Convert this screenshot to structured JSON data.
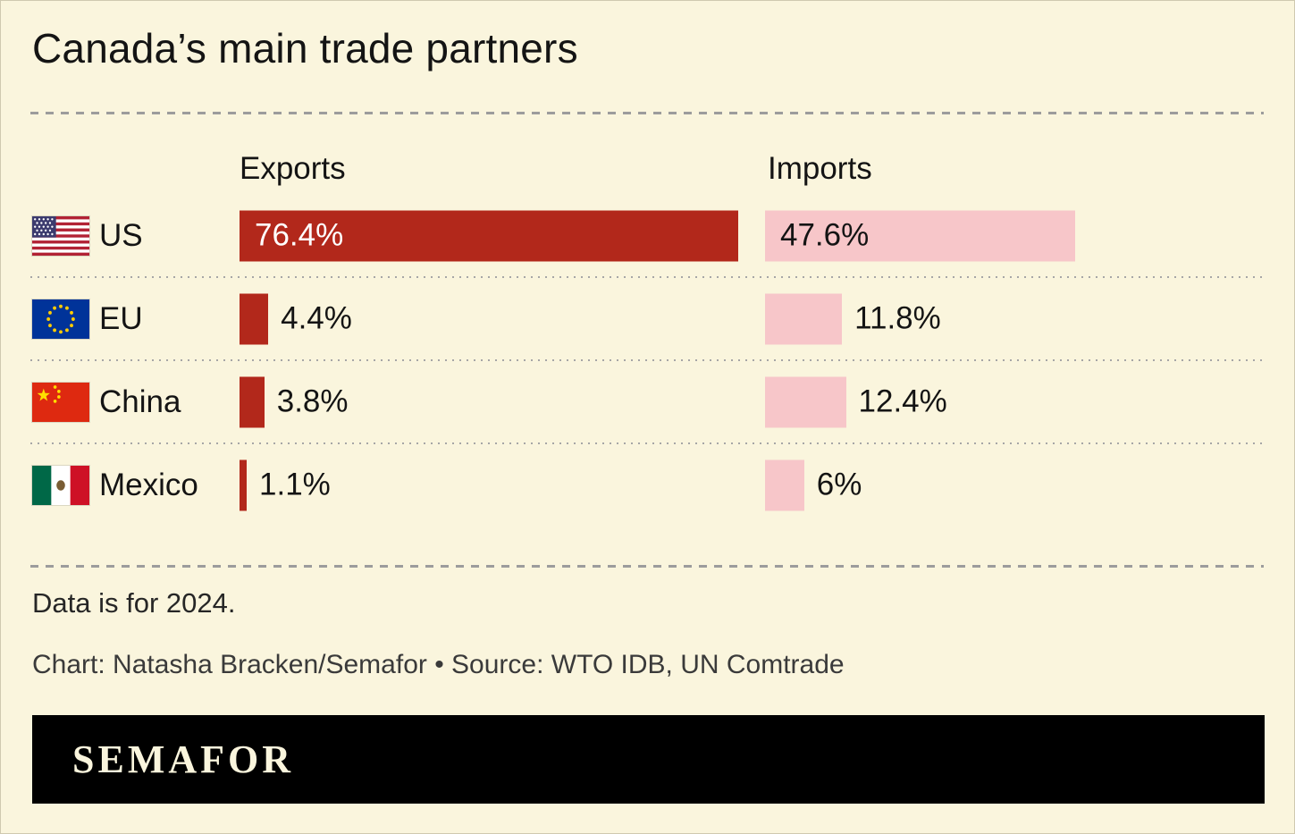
{
  "title": "Canada’s main trade partners",
  "columns": {
    "exports_label": "Exports",
    "imports_label": "Imports"
  },
  "rows": [
    {
      "country": "US",
      "flag": "us-flag",
      "export_value": 76.4,
      "export_label": "76.4%",
      "import_value": 47.6,
      "import_label": "47.6%"
    },
    {
      "country": "EU",
      "flag": "eu-flag",
      "export_value": 4.4,
      "export_label": "4.4%",
      "import_value": 11.8,
      "import_label": "11.8%"
    },
    {
      "country": "China",
      "flag": "china-flag",
      "export_value": 3.8,
      "export_label": "3.8%",
      "import_value": 12.4,
      "import_label": "12.4%"
    },
    {
      "country": "Mexico",
      "flag": "mexico-flag",
      "export_value": 1.1,
      "export_label": "1.1%",
      "import_value": 6,
      "import_label": "6%"
    }
  ],
  "chart_data": {
    "type": "bar",
    "orientation": "horizontal",
    "title": "Canada’s main trade partners",
    "categories": [
      "US",
      "EU",
      "China",
      "Mexico"
    ],
    "series": [
      {
        "name": "Exports",
        "values": [
          76.4,
          4.4,
          3.8,
          1.1
        ]
      },
      {
        "name": "Imports",
        "values": [
          47.6,
          11.8,
          12.4,
          6
        ]
      }
    ],
    "unit": "%",
    "xlim": [
      0,
      80
    ],
    "grid": false,
    "legend_position": "column-headers",
    "colors": {
      "Exports": "#b2281b",
      "Imports": "#f7c6c9"
    },
    "annotations": [
      "Data is for 2024."
    ]
  },
  "footer": {
    "note": "Data is for 2024.",
    "credit": "Chart: Natasha Bracken/Semafor • Source: WTO IDB, UN Comtrade",
    "logo_text": "SEMAFOR"
  }
}
